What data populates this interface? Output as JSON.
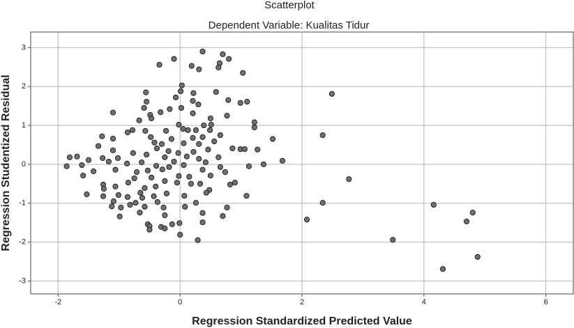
{
  "chart_data": {
    "type": "scatter",
    "title": "Scatterplot",
    "subtitle": "Dependent Variable: Kualitas Tidur",
    "x_label": "Regression Standardized Predicted Value",
    "y_label": "Regression Studentized Residual",
    "color": "#707070",
    "grid": true,
    "xlim": [
      -2.45,
      6.45
    ],
    "ylim": [
      -3.33,
      3.4
    ],
    "xticks": [
      -2,
      0,
      2,
      4,
      6
    ],
    "yticks": [
      -3,
      -2,
      -1,
      0,
      1,
      2,
      3
    ],
    "x": [
      0.37,
      -0.1,
      0.7,
      0.8,
      -0.34,
      0.65,
      0.19,
      0.63,
      0.31,
      1.03,
      0.03,
      0.01,
      2.49,
      -0.56,
      0.59,
      -0.07,
      0.22,
      0.79,
      0.99,
      1.1,
      -0.55,
      -1.1,
      -0.59,
      -0.17,
      0.21,
      0.3,
      -0.49,
      -0.32,
      0.02,
      0.21,
      0.77,
      0.5,
      1.22,
      1.22,
      -0.67,
      -0.47,
      -0.02,
      0.39,
      0.51,
      -0.78,
      -0.57,
      -0.86,
      -0.23,
      0.05,
      0.13,
      0.26,
      0.49,
      2.34,
      1.52,
      -1.28,
      -1.1,
      0.66,
      -0.48,
      -0.14,
      0.21,
      0.37,
      -1.34,
      -0.42,
      -0.3,
      0.06,
      0.31,
      0.56,
      0.99,
      0.86,
      1.27,
      -1.1,
      -0.77,
      -0.38,
      -0.19,
      -0.03,
      0.22,
      0.46,
      1.06,
      -1.81,
      -1.69,
      -1.27,
      -1.02,
      -0.55,
      -0.25,
      0.11,
      0.31,
      0.63,
      1.68,
      -1.5,
      -1.17,
      -0.63,
      -0.1,
      0.42,
      -1.86,
      -1.61,
      -0.87,
      -0.39,
      -0.18,
      0.06,
      0.66,
      1.37,
      1.13,
      -1.42,
      -1.06,
      -0.71,
      -0.53,
      -0.29,
      0.37,
      0.74,
      -1.59,
      -0.75,
      -0.47,
      -0.02,
      0.15,
      0.5,
      2.77,
      -1.26,
      -0.85,
      -0.25,
      -0.05,
      0.33,
      0.9,
      0.82,
      -1.25,
      -1.06,
      -0.58,
      -0.4,
      0.18,
      -1.53,
      -1.01,
      -0.65,
      -0.62,
      -0.22,
      0.48,
      0.43,
      -1.26,
      -0.86,
      -0.43,
      0.07,
      1.09,
      -1.09,
      -0.73,
      -0.37,
      0.26,
      2.34,
      4.16,
      -1.12,
      -0.82,
      -0.58,
      0.08,
      -0.97,
      -0.27,
      0.77,
      4.8,
      -0.66,
      0.37,
      -0.99,
      -0.25,
      0.7,
      2.08,
      4.7,
      -0.53,
      0.37,
      -0.13,
      -0.01,
      -0.5,
      -0.31,
      -0.25,
      -0.5,
      0.0,
      0.29,
      3.49,
      4.88,
      4.31
    ],
    "values": [
      2.9,
      2.71,
      2.83,
      2.71,
      2.56,
      2.6,
      2.53,
      2.49,
      2.44,
      2.35,
      2.03,
      1.88,
      1.81,
      1.85,
      1.86,
      1.72,
      1.83,
      1.65,
      1.58,
      1.61,
      1.61,
      1.33,
      1.45,
      1.42,
      1.63,
      1.54,
      1.27,
      1.34,
      1.45,
      1.31,
      1.25,
      1.18,
      1.08,
      0.95,
      1.13,
      1.18,
      1.02,
      1.0,
      1.02,
      0.88,
      0.86,
      0.82,
      0.86,
      0.91,
      0.88,
      0.88,
      0.88,
      0.75,
      0.65,
      0.72,
      0.66,
      0.75,
      0.7,
      0.65,
      0.68,
      0.7,
      0.47,
      0.56,
      0.52,
      0.54,
      0.52,
      0.59,
      0.39,
      0.41,
      0.38,
      0.36,
      0.29,
      0.41,
      0.34,
      0.29,
      0.32,
      0.38,
      0.39,
      0.18,
      0.2,
      0.16,
      0.16,
      0.25,
      0.18,
      0.2,
      0.14,
      0.18,
      0.09,
      0.11,
      0.07,
      0.05,
      0.07,
      0.05,
      -0.05,
      -0.02,
      0.02,
      -0.04,
      -0.07,
      -0.02,
      -0.07,
      0.0,
      -0.05,
      -0.18,
      -0.14,
      -0.2,
      -0.16,
      -0.13,
      -0.14,
      -0.2,
      -0.29,
      -0.36,
      -0.34,
      -0.3,
      -0.32,
      -0.29,
      -0.38,
      -0.52,
      -0.47,
      -0.43,
      -0.47,
      -0.5,
      -0.47,
      -0.52,
      -0.63,
      -0.57,
      -0.61,
      -0.57,
      -0.5,
      -0.77,
      -0.79,
      -0.73,
      -0.86,
      -0.75,
      -0.66,
      -0.73,
      -0.82,
      -0.84,
      -0.82,
      -0.81,
      -0.81,
      -0.95,
      -0.99,
      -0.97,
      -0.99,
      -0.99,
      -1.04,
      -1.08,
      -1.04,
      -1.09,
      -1.09,
      -1.11,
      -1.11,
      -1.11,
      -1.24,
      -1.24,
      -1.25,
      -1.34,
      -1.31,
      -1.33,
      -1.42,
      -1.47,
      -1.54,
      -1.49,
      -1.54,
      -1.51,
      -1.59,
      -1.61,
      -1.65,
      -1.68,
      -1.81,
      -1.95,
      -1.94,
      -2.38,
      -2.69
    ]
  }
}
